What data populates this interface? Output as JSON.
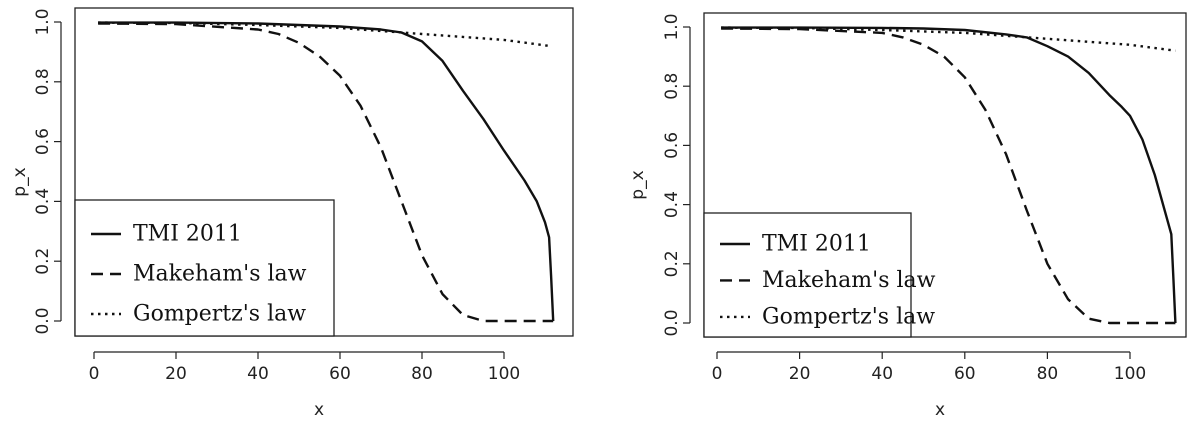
{
  "chart_data": [
    {
      "type": "line",
      "title": "",
      "xlabel": "x",
      "ylabel": "p_x",
      "xlim": [
        0,
        115
      ],
      "ylim": [
        0,
        1
      ],
      "x_ticks": [
        "0",
        "20",
        "40",
        "60",
        "80",
        "100"
      ],
      "y_ticks": [
        "0.0",
        "0.2",
        "0.4",
        "0.6",
        "0.8",
        "1.0"
      ],
      "grid": false,
      "legend": "bottom-left",
      "series": [
        {
          "name": "TMI 2011",
          "line_style": "solid",
          "points": [
            [
              1,
              0.998
            ],
            [
              20,
              0.998
            ],
            [
              40,
              0.995
            ],
            [
              50,
              0.99
            ],
            [
              60,
              0.985
            ],
            [
              70,
              0.975
            ],
            [
              75,
              0.965
            ],
            [
              80,
              0.935
            ],
            [
              85,
              0.87
            ],
            [
              90,
              0.77
            ],
            [
              95,
              0.675
            ],
            [
              100,
              0.57
            ],
            [
              105,
              0.47
            ],
            [
              108,
              0.4
            ],
            [
              110,
              0.33
            ],
            [
              111,
              0.28
            ],
            [
              111.5,
              0.15
            ],
            [
              112,
              0.0
            ]
          ]
        },
        {
          "name": "Makeham's law",
          "line_style": "dashed",
          "points": [
            [
              1,
              0.995
            ],
            [
              20,
              0.993
            ],
            [
              40,
              0.975
            ],
            [
              45,
              0.96
            ],
            [
              50,
              0.93
            ],
            [
              55,
              0.885
            ],
            [
              60,
              0.82
            ],
            [
              65,
              0.72
            ],
            [
              70,
              0.58
            ],
            [
              75,
              0.4
            ],
            [
              80,
              0.22
            ],
            [
              85,
              0.09
            ],
            [
              90,
              0.02
            ],
            [
              95,
              0.0
            ],
            [
              112,
              0.0
            ]
          ]
        },
        {
          "name": "Gompertz's law",
          "line_style": "dotted",
          "points": [
            [
              1,
              0.998
            ],
            [
              20,
              0.997
            ],
            [
              40,
              0.99
            ],
            [
              60,
              0.98
            ],
            [
              80,
              0.96
            ],
            [
              100,
              0.94
            ],
            [
              111,
              0.92
            ]
          ]
        }
      ]
    },
    {
      "type": "line",
      "title": "",
      "xlabel": "x",
      "ylabel": "p_x",
      "xlim": [
        0,
        115
      ],
      "ylim": [
        0,
        1
      ],
      "x_ticks": [
        "0",
        "20",
        "40",
        "60",
        "80",
        "100"
      ],
      "y_ticks": [
        "0.0",
        "0.2",
        "0.4",
        "0.6",
        "0.8",
        "1.0"
      ],
      "grid": false,
      "legend": "bottom-left",
      "series": [
        {
          "name": "TMI 2011",
          "line_style": "solid",
          "points": [
            [
              1,
              0.998
            ],
            [
              20,
              0.998
            ],
            [
              40,
              0.997
            ],
            [
              50,
              0.995
            ],
            [
              60,
              0.99
            ],
            [
              70,
              0.975
            ],
            [
              75,
              0.965
            ],
            [
              80,
              0.935
            ],
            [
              85,
              0.9
            ],
            [
              90,
              0.845
            ],
            [
              95,
              0.77
            ],
            [
              98,
              0.73
            ],
            [
              100,
              0.7
            ],
            [
              103,
              0.62
            ],
            [
              106,
              0.5
            ],
            [
              109,
              0.35
            ],
            [
              110,
              0.3
            ],
            [
              110.5,
              0.15
            ],
            [
              111,
              0.0
            ]
          ]
        },
        {
          "name": "Makeham's law",
          "line_style": "dashed",
          "points": [
            [
              1,
              0.995
            ],
            [
              20,
              0.993
            ],
            [
              40,
              0.98
            ],
            [
              45,
              0.965
            ],
            [
              50,
              0.94
            ],
            [
              55,
              0.9
            ],
            [
              60,
              0.83
            ],
            [
              65,
              0.72
            ],
            [
              70,
              0.57
            ],
            [
              75,
              0.38
            ],
            [
              80,
              0.2
            ],
            [
              85,
              0.08
            ],
            [
              90,
              0.015
            ],
            [
              95,
              0.0
            ],
            [
              111,
              0.0
            ]
          ]
        },
        {
          "name": "Gompertz's law",
          "line_style": "dotted",
          "points": [
            [
              1,
              0.998
            ],
            [
              20,
              0.997
            ],
            [
              40,
              0.99
            ],
            [
              60,
              0.98
            ],
            [
              80,
              0.96
            ],
            [
              100,
              0.94
            ],
            [
              111,
              0.92
            ]
          ]
        }
      ]
    }
  ]
}
